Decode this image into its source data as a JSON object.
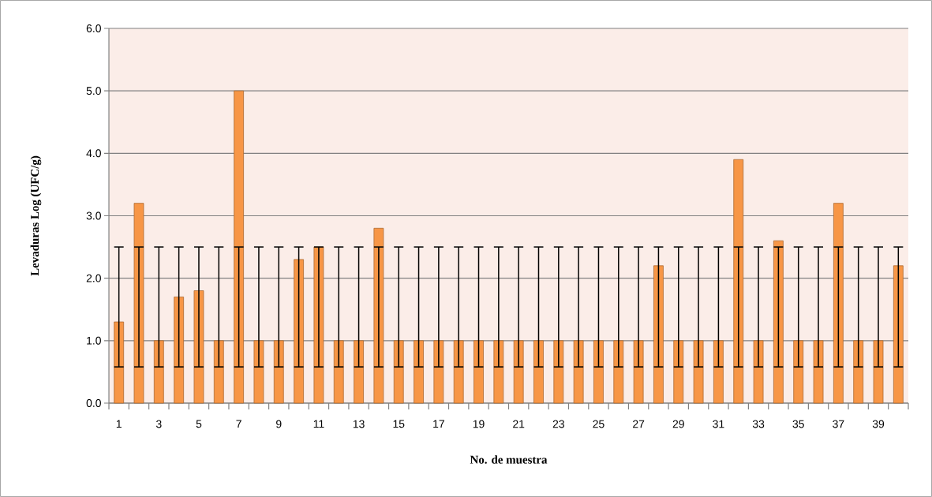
{
  "chart_data": {
    "type": "bar",
    "xlabel": "No. de muestra",
    "ylabel": "Levaduras Log (UFC/g)",
    "categories": [
      "1",
      null,
      "3",
      null,
      "5",
      null,
      "7",
      null,
      "9",
      null,
      "11",
      null,
      "13",
      null,
      "15",
      null,
      "17",
      null,
      "19",
      null,
      "21",
      null,
      "23",
      null,
      "25",
      null,
      "27",
      null,
      "29",
      null,
      "31",
      null,
      "33",
      null,
      "35",
      null,
      "37",
      null,
      "39",
      null
    ],
    "values": [
      1.3,
      3.2,
      1.0,
      1.7,
      1.8,
      1.0,
      5.0,
      1.0,
      1.0,
      2.3,
      2.5,
      1.0,
      1.0,
      2.8,
      1.0,
      1.0,
      1.0,
      1.0,
      1.0,
      1.0,
      1.0,
      1.0,
      1.0,
      1.0,
      1.0,
      1.0,
      1.0,
      2.2,
      1.0,
      1.0,
      1.0,
      3.9,
      1.0,
      2.6,
      1.0,
      1.0,
      3.2,
      1.0,
      1.0,
      2.2
    ],
    "errors": [
      [
        0.58,
        2.5
      ],
      [
        0.58,
        2.5
      ],
      [
        0.58,
        2.5
      ],
      [
        0.58,
        2.5
      ],
      [
        0.58,
        2.5
      ],
      [
        0.58,
        2.5
      ],
      [
        0.58,
        2.5
      ],
      [
        0.58,
        2.5
      ],
      [
        0.58,
        2.5
      ],
      [
        0.58,
        2.5
      ],
      [
        0.58,
        2.5
      ],
      [
        0.58,
        2.5
      ],
      [
        0.58,
        2.5
      ],
      [
        0.58,
        2.5
      ],
      [
        0.58,
        2.5
      ],
      [
        0.58,
        2.5
      ],
      [
        0.58,
        2.5
      ],
      [
        0.58,
        2.5
      ],
      [
        0.58,
        2.5
      ],
      [
        0.58,
        2.5
      ],
      [
        0.58,
        2.5
      ],
      [
        0.58,
        2.5
      ],
      [
        0.58,
        2.5
      ],
      [
        0.58,
        2.5
      ],
      [
        0.58,
        2.5
      ],
      [
        0.58,
        2.5
      ],
      [
        0.58,
        2.5
      ],
      [
        0.58,
        2.5
      ],
      [
        0.58,
        2.5
      ],
      [
        0.58,
        2.5
      ],
      [
        0.58,
        2.5
      ],
      [
        0.58,
        2.5
      ],
      [
        0.58,
        2.5
      ],
      [
        0.58,
        2.5
      ],
      [
        0.58,
        2.5
      ],
      [
        0.58,
        2.5
      ],
      [
        0.58,
        2.5
      ],
      [
        0.58,
        2.5
      ],
      [
        0.58,
        2.5
      ],
      [
        0.58,
        2.5
      ]
    ],
    "color": "#f79646",
    "ylim": [
      0,
      6
    ],
    "yticks": [
      {
        "value": 0,
        "label": "0.0"
      },
      {
        "value": 1,
        "label": "1.0"
      },
      {
        "value": 2,
        "label": "2.0"
      },
      {
        "value": 3,
        "label": "3.0"
      },
      {
        "value": 4,
        "label": "4.0"
      },
      {
        "value": 5,
        "label": "5.0"
      },
      {
        "value": 6,
        "label": "6.0"
      }
    ],
    "grid": "y"
  }
}
